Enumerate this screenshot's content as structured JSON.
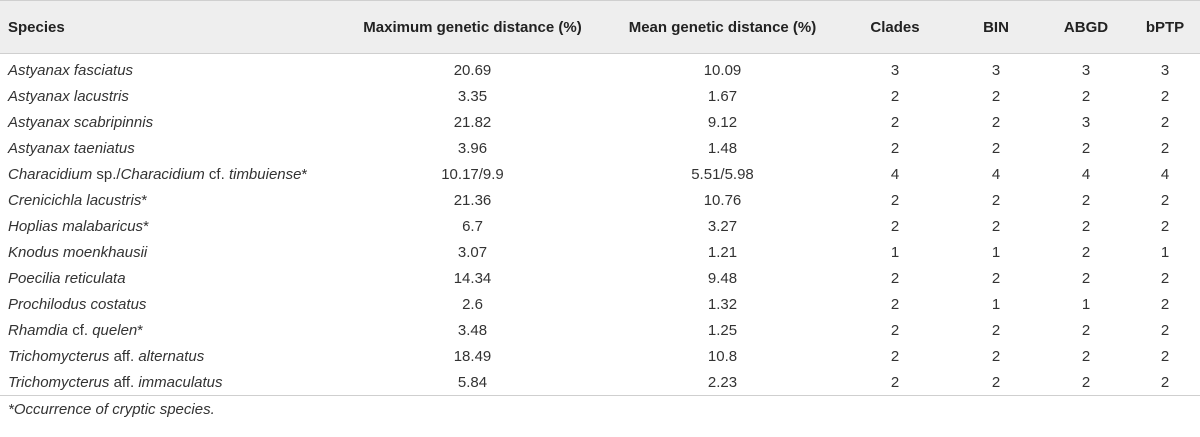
{
  "table": {
    "headers": {
      "species": "Species",
      "max": "Maximum genetic distance (%)",
      "mean": "Mean genetic distance (%)",
      "clades": "Clades",
      "bin": "BIN",
      "abgd": "ABGD",
      "bptp": "bPTP"
    },
    "rows": [
      {
        "species": [
          {
            "t": "Astyanax fasciatus",
            "i": true
          }
        ],
        "max": "20.69",
        "mean": "10.09",
        "clades": "3",
        "bin": "3",
        "abgd": "3",
        "bptp": "3"
      },
      {
        "species": [
          {
            "t": "Astyanax lacustris",
            "i": true
          }
        ],
        "max": "3.35",
        "mean": "1.67",
        "clades": "2",
        "bin": "2",
        "abgd": "2",
        "bptp": "2"
      },
      {
        "species": [
          {
            "t": "Astyanax scabripinnis",
            "i": true
          }
        ],
        "max": "21.82",
        "mean": "9.12",
        "clades": "2",
        "bin": "2",
        "abgd": "3",
        "bptp": "2"
      },
      {
        "species": [
          {
            "t": "Astyanax taeniatus",
            "i": true
          }
        ],
        "max": "3.96",
        "mean": "1.48",
        "clades": "2",
        "bin": "2",
        "abgd": "2",
        "bptp": "2"
      },
      {
        "species": [
          {
            "t": "Characidium",
            "i": true
          },
          {
            "t": " sp./",
            "i": false
          },
          {
            "t": "Characidium",
            "i": true
          },
          {
            "t": " cf. ",
            "i": false
          },
          {
            "t": "timbuiense",
            "i": true
          },
          {
            "t": "*",
            "i": false
          }
        ],
        "max": "10.17/9.9",
        "mean": "5.51/5.98",
        "clades": "4",
        "bin": "4",
        "abgd": "4",
        "bptp": "4"
      },
      {
        "species": [
          {
            "t": "Crenicichla lacustris",
            "i": true
          },
          {
            "t": "*",
            "i": false
          }
        ],
        "max": "21.36",
        "mean": "10.76",
        "clades": "2",
        "bin": "2",
        "abgd": "2",
        "bptp": "2"
      },
      {
        "species": [
          {
            "t": "Hoplias malabaricus",
            "i": true
          },
          {
            "t": "*",
            "i": false
          }
        ],
        "max": "6.7",
        "mean": "3.27",
        "clades": "2",
        "bin": "2",
        "abgd": "2",
        "bptp": "2"
      },
      {
        "species": [
          {
            "t": "Knodus moenkhausii",
            "i": true
          }
        ],
        "max": "3.07",
        "mean": "1.21",
        "clades": "1",
        "bin": "1",
        "abgd": "2",
        "bptp": "1"
      },
      {
        "species": [
          {
            "t": "Poecilia reticulata",
            "i": true
          }
        ],
        "max": "14.34",
        "mean": "9.48",
        "clades": "2",
        "bin": "2",
        "abgd": "2",
        "bptp": "2"
      },
      {
        "species": [
          {
            "t": "Prochilodus costatus",
            "i": true
          }
        ],
        "max": "2.6",
        "mean": "1.32",
        "clades": "2",
        "bin": "1",
        "abgd": "1",
        "bptp": "2"
      },
      {
        "species": [
          {
            "t": "Rhamdia",
            "i": true
          },
          {
            "t": " cf. ",
            "i": false
          },
          {
            "t": "quelen",
            "i": true
          },
          {
            "t": "*",
            "i": false
          }
        ],
        "max": "3.48",
        "mean": "1.25",
        "clades": "2",
        "bin": "2",
        "abgd": "2",
        "bptp": "2"
      },
      {
        "species": [
          {
            "t": "Trichomycterus",
            "i": true
          },
          {
            "t": " aff. ",
            "i": false
          },
          {
            "t": "alternatus",
            "i": true
          }
        ],
        "max": "18.49",
        "mean": "10.8",
        "clades": "2",
        "bin": "2",
        "abgd": "2",
        "bptp": "2"
      },
      {
        "species": [
          {
            "t": "Trichomycterus",
            "i": true
          },
          {
            "t": " aff. ",
            "i": false
          },
          {
            "t": "immaculatus",
            "i": true
          }
        ],
        "max": "5.84",
        "mean": "2.23",
        "clades": "2",
        "bin": "2",
        "abgd": "2",
        "bptp": "2"
      }
    ]
  },
  "footnote": "*Occurrence of cryptic species."
}
